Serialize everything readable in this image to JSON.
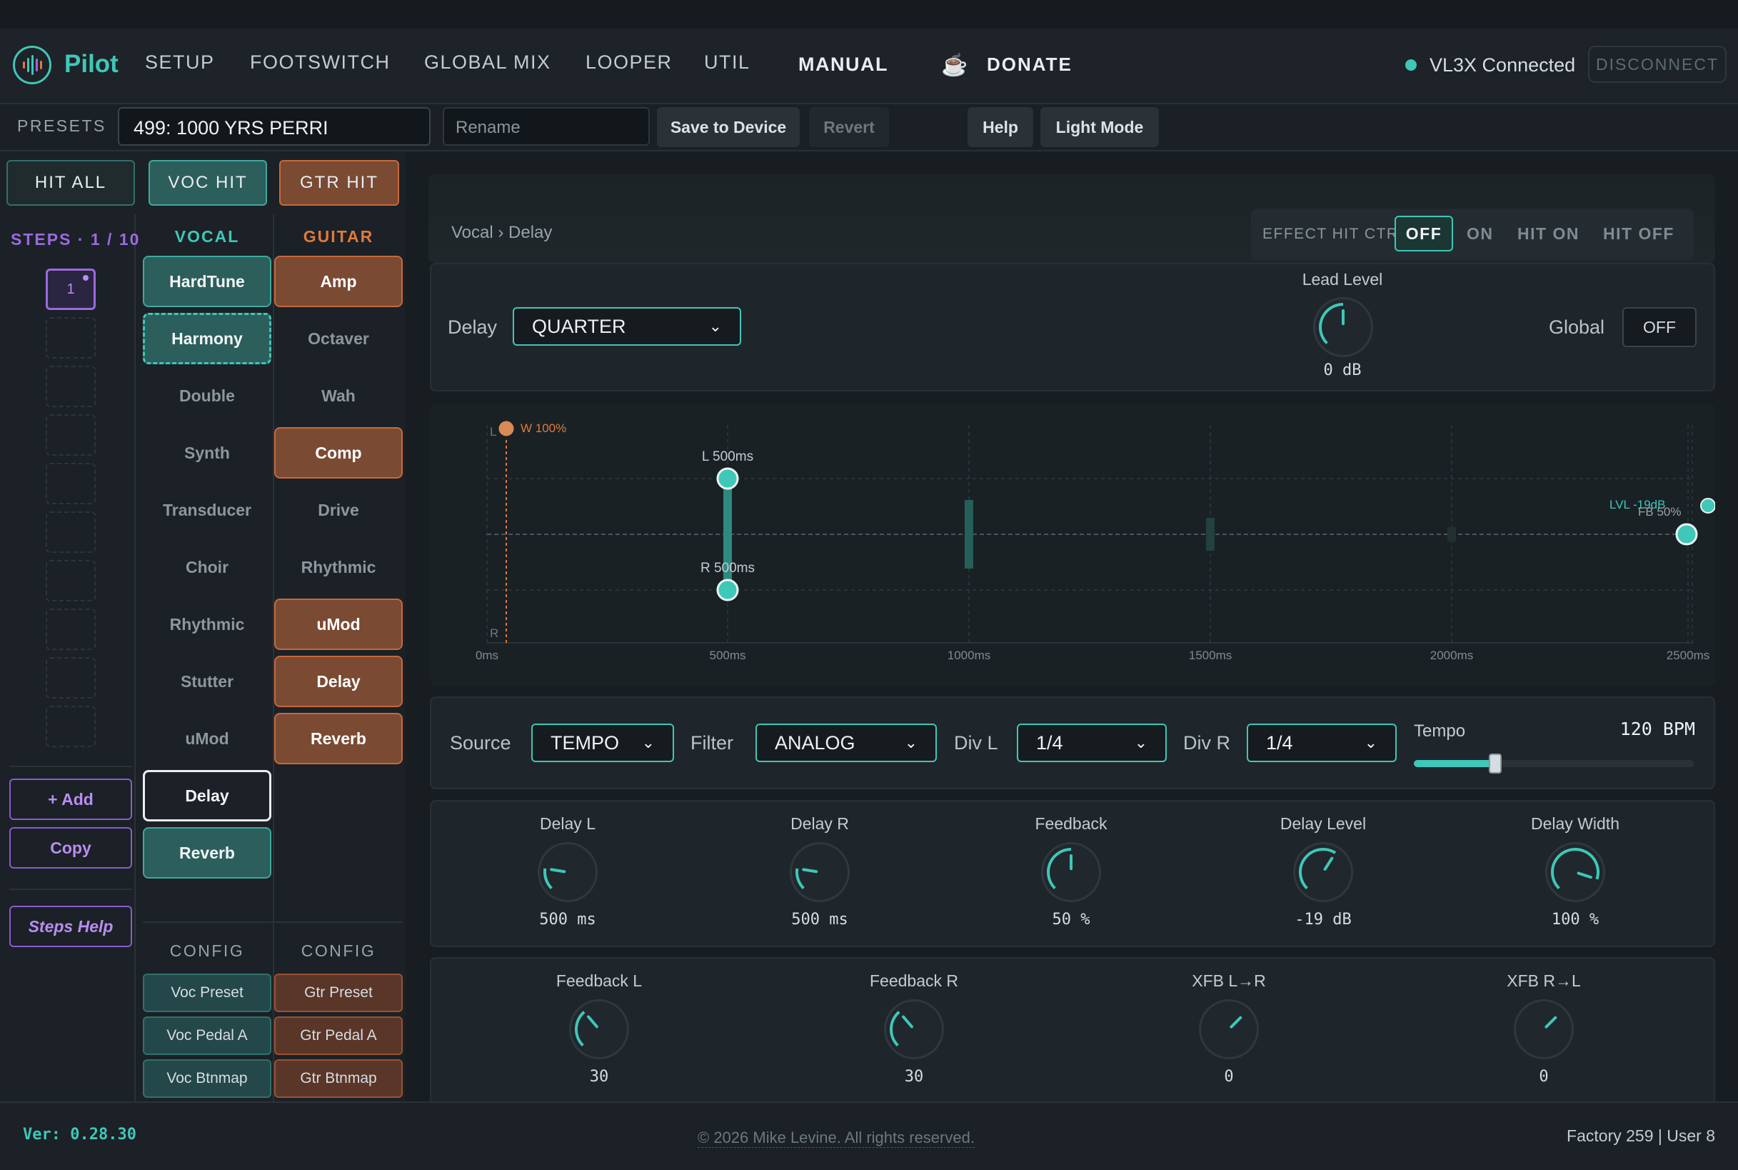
{
  "app": {
    "title": "Pilot"
  },
  "nav": {
    "items": [
      "SETUP",
      "FOOTSWITCH",
      "GLOBAL MIX",
      "LOOPER",
      "UTIL",
      "MANUAL"
    ],
    "active": "MANUAL",
    "donate": "DONATE",
    "status": "VL3X Connected",
    "disconnect": "DISCONNECT"
  },
  "presets": {
    "label": "PRESETS",
    "current": "499: 1000 YRS PERRI",
    "rename_placeholder": "Rename",
    "save": "Save to Device",
    "revert": "Revert",
    "help": "Help",
    "light_mode": "Light Mode"
  },
  "hits": {
    "all": "HIT ALL",
    "voc": "VOC HIT",
    "gtr": "GTR HIT"
  },
  "steps": {
    "label": "STEPS",
    "count": "1 / 10",
    "current": "1",
    "add": "+ Add",
    "copy": "Copy",
    "help": "Steps Help"
  },
  "vocal": {
    "header": "VOCAL",
    "effects": [
      "HardTune",
      "Harmony",
      "Double",
      "Synth",
      "Transducer",
      "Choir",
      "Rhythmic",
      "Stutter",
      "uMod",
      "Delay",
      "Reverb"
    ],
    "config_header": "CONFIG",
    "config": [
      "Voc Preset",
      "Voc Pedal A",
      "Voc Btnmap"
    ]
  },
  "guitar": {
    "header": "GUITAR",
    "effects": [
      "Amp",
      "Octaver",
      "Wah",
      "Comp",
      "Drive",
      "Rhythmic",
      "uMod",
      "Delay",
      "Reverb"
    ],
    "config_header": "CONFIG",
    "config": [
      "Gtr Preset",
      "Gtr Pedal A",
      "Gtr Btnmap"
    ]
  },
  "main": {
    "breadcrumb": "Vocal › Delay",
    "hit_ctrl": {
      "label": "EFFECT HIT CTRL:",
      "options": [
        "OFF",
        "ON",
        "HIT ON",
        "HIT OFF"
      ],
      "selected": "OFF"
    },
    "delay_label": "Delay",
    "delay_value": "QUARTER",
    "lead_level": {
      "label": "Lead Level",
      "value": "0 dB",
      "level": 0.5
    },
    "global": {
      "label": "Global",
      "value": "OFF"
    },
    "graph": {
      "ticks": [
        "0ms",
        "500ms",
        "1000ms",
        "1500ms",
        "2000ms",
        "2500ms"
      ],
      "L_label": "L",
      "R_label": "R",
      "wet": "W 100%",
      "l_marker": "L 500ms",
      "r_marker": "R 500ms",
      "lvl": "LVL -19dB",
      "fb": "FB 50%"
    },
    "source": {
      "label": "Source",
      "value": "TEMPO"
    },
    "filter": {
      "label": "Filter",
      "value": "ANALOG"
    },
    "div_l": {
      "label": "Div L",
      "value": "1/4"
    },
    "div_r": {
      "label": "Div R",
      "value": "1/4"
    },
    "tempo": {
      "label": "Tempo",
      "value": "120 BPM",
      "level": 0.29
    },
    "knobs1": [
      {
        "label": "Delay L",
        "value": "500 ms",
        "level": 0.2
      },
      {
        "label": "Delay R",
        "value": "500 ms",
        "level": 0.2
      },
      {
        "label": "Feedback",
        "value": "50 %",
        "level": 0.5
      },
      {
        "label": "Delay Level",
        "value": "-19 dB",
        "level": 0.62
      },
      {
        "label": "Delay Width",
        "value": "100 %",
        "level": 0.9
      }
    ],
    "knobs2": [
      {
        "label": "Feedback L",
        "value": "30",
        "level": 0.35
      },
      {
        "label": "Feedback R",
        "value": "30",
        "level": 0.35
      },
      {
        "label": "XFB L→R",
        "value": "0",
        "level": 0.0
      },
      {
        "label": "XFB R→L",
        "value": "0",
        "level": 0.0
      }
    ]
  },
  "footer": {
    "version": "Ver: 0.28.30",
    "copyright": "© 2026 Mike Levine. All rights reserved.",
    "counts": "Factory 259 | User 8"
  },
  "colors": {
    "accent": "#3fc7b8",
    "vocal": "#3fc7b8",
    "guitar": "#e07a3c",
    "steps": "#9b6be0"
  }
}
